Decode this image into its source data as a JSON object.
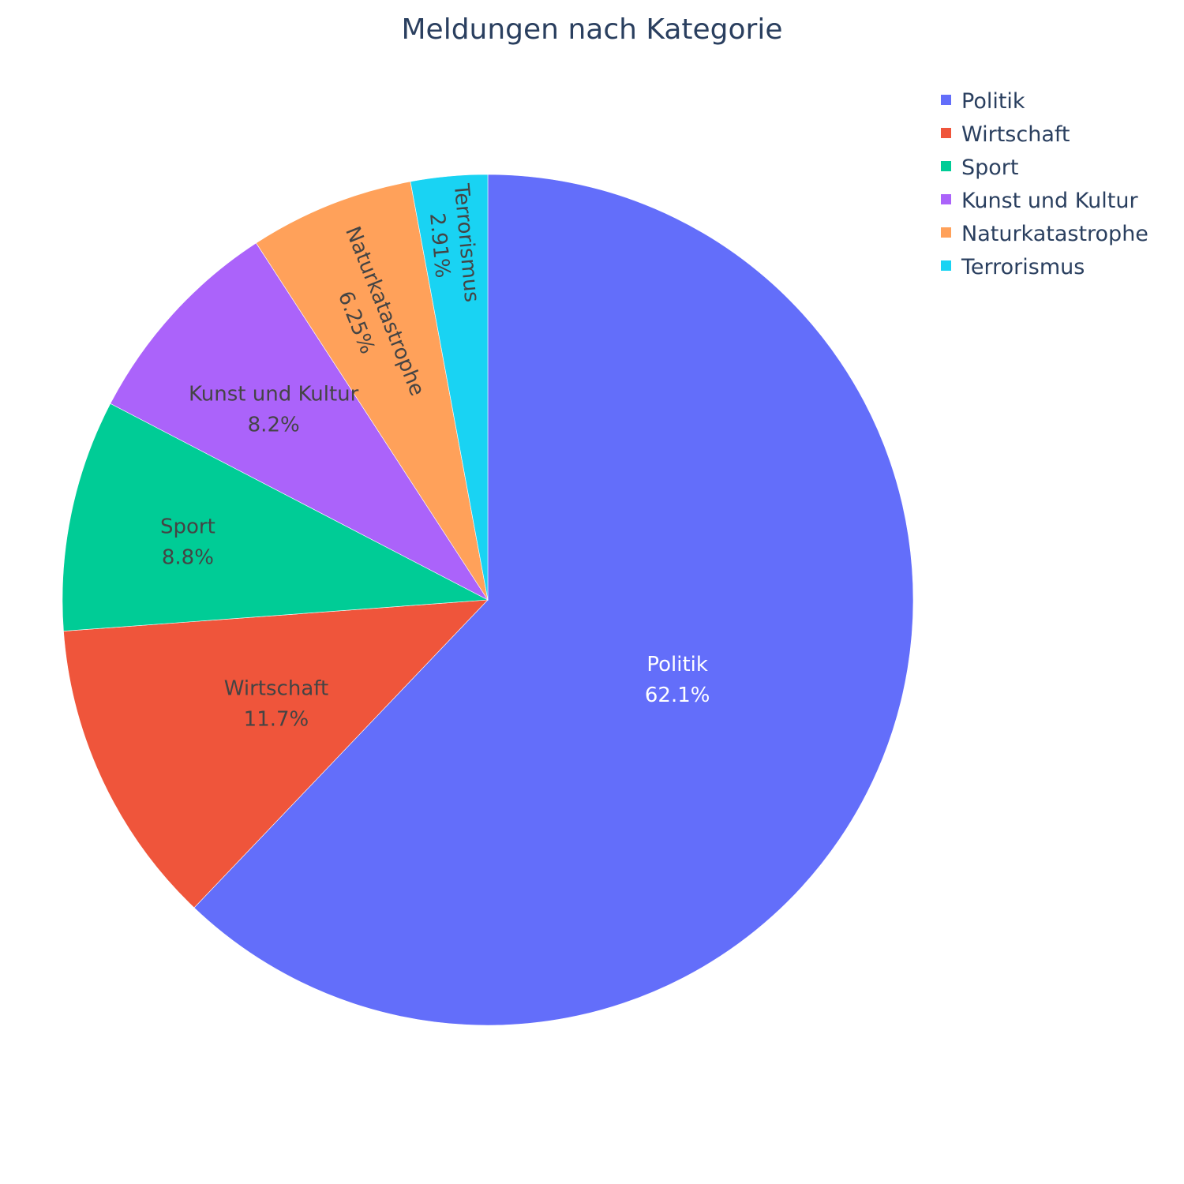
{
  "chart_data": {
    "type": "pie",
    "title": "Meldungen nach Kategorie",
    "categories": [
      "Politik",
      "Wirtschaft",
      "Sport",
      "Kunst und Kultur",
      "Naturkatastrophe",
      "Terrorismus"
    ],
    "values": [
      62.1,
      11.7,
      8.8,
      8.2,
      6.25,
      2.91
    ],
    "percent_labels": [
      "62.1%",
      "11.7%",
      "8.8%",
      "8.2%",
      "6.25%",
      "2.91%"
    ],
    "colors": [
      "#636efa",
      "#EF553B",
      "#00cc96",
      "#ab63fa",
      "#FFA15A",
      "#19d3f3"
    ],
    "label_colors": [
      "#ffffff",
      "#444444",
      "#444444",
      "#444444",
      "#444444",
      "#444444"
    ],
    "direction": "clockwise",
    "start": "top",
    "legend_position": "top-right"
  }
}
